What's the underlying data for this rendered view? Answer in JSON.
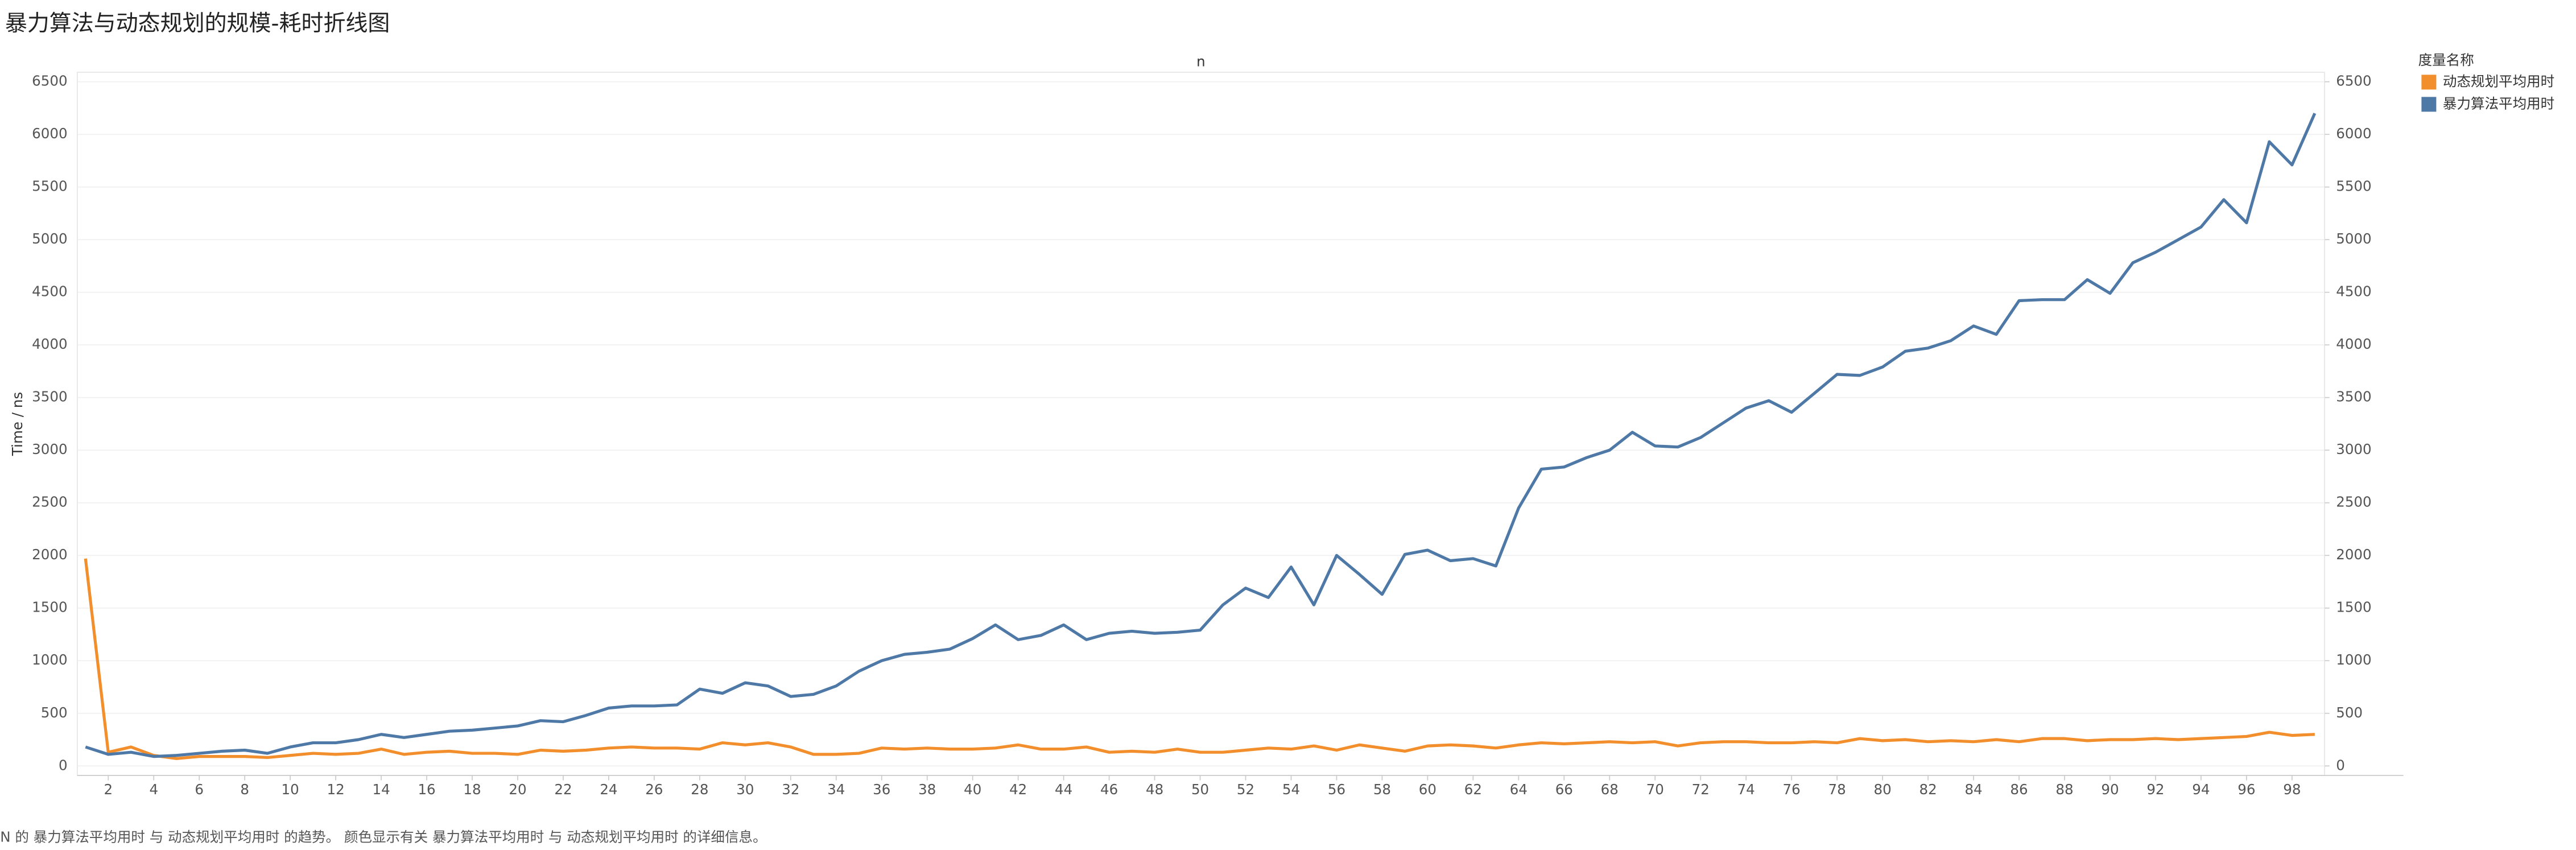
{
  "chart_data": {
    "type": "line",
    "title": "暴力算法与动态规划的规模-耗时折线图",
    "x_label": "n",
    "y_label": "Time / ns",
    "legend_title": "度量名称",
    "caption": "N 的 暴力算法平均用时 与 动态规划平均用时 的趋势。 颜色显示有关 暴力算法平均用时 与 动态规划平均用时 的详细信息。",
    "x": [
      1,
      2,
      3,
      4,
      5,
      6,
      7,
      8,
      9,
      10,
      11,
      12,
      13,
      14,
      15,
      16,
      17,
      18,
      19,
      20,
      21,
      22,
      23,
      24,
      25,
      26,
      27,
      28,
      29,
      30,
      31,
      32,
      33,
      34,
      35,
      36,
      37,
      38,
      39,
      40,
      41,
      42,
      43,
      44,
      45,
      46,
      47,
      48,
      49,
      50,
      51,
      52,
      53,
      54,
      55,
      56,
      57,
      58,
      59,
      60,
      61,
      62,
      63,
      64,
      65,
      66,
      67,
      68,
      69,
      70,
      71,
      72,
      73,
      74,
      75,
      76,
      77,
      78,
      79,
      80,
      81,
      82,
      83,
      84,
      85,
      86,
      87,
      88,
      89,
      90,
      91,
      92,
      93,
      94,
      95,
      96,
      97,
      98,
      99
    ],
    "xlim": [
      0.64,
      99.43
    ],
    "xticks": [
      2,
      4,
      6,
      8,
      10,
      12,
      14,
      16,
      18,
      20,
      22,
      24,
      26,
      28,
      30,
      32,
      34,
      36,
      38,
      40,
      42,
      44,
      46,
      48,
      50,
      52,
      54,
      56,
      58,
      60,
      62,
      64,
      66,
      68,
      70,
      72,
      74,
      76,
      78,
      80,
      82,
      84,
      86,
      88,
      90,
      92,
      94,
      96,
      98
    ],
    "ylim": [
      -90,
      6590
    ],
    "yticks": [
      0,
      500,
      1000,
      1500,
      2000,
      2500,
      3000,
      3500,
      4000,
      4500,
      5000,
      5500,
      6000,
      6500
    ],
    "y2lim": [
      -90,
      6590
    ],
    "y2ticks": [
      0,
      500,
      1000,
      1500,
      2000,
      2500,
      3000,
      3500,
      4000,
      4500,
      5000,
      5500,
      6000,
      6500
    ],
    "grid": true,
    "legend": "right",
    "series": [
      {
        "name": "动态规划平均用时",
        "color": "#f28e2b",
        "values": [
          1970,
          130,
          180,
          100,
          70,
          90,
          90,
          90,
          80,
          100,
          120,
          110,
          120,
          160,
          110,
          130,
          140,
          120,
          120,
          110,
          150,
          140,
          150,
          170,
          180,
          170,
          170,
          160,
          220,
          200,
          220,
          180,
          110,
          110,
          120,
          170,
          160,
          170,
          160,
          160,
          170,
          200,
          160,
          160,
          180,
          130,
          140,
          130,
          160,
          130,
          130,
          150,
          170,
          160,
          190,
          150,
          200,
          170,
          140,
          190,
          200,
          190,
          170,
          200,
          220,
          210,
          220,
          230,
          220,
          230,
          190,
          220,
          230,
          230,
          220,
          220,
          230,
          220,
          260,
          240,
          250,
          230,
          240,
          230,
          250,
          230,
          260,
          260,
          240,
          250,
          250,
          260,
          250,
          260,
          270,
          280,
          320,
          290,
          300
        ]
      },
      {
        "name": "暴力算法平均用时",
        "color": "#4e79a7",
        "values": [
          180,
          110,
          130,
          90,
          100,
          120,
          140,
          150,
          120,
          180,
          220,
          220,
          250,
          300,
          270,
          300,
          330,
          340,
          360,
          380,
          430,
          420,
          480,
          550,
          570,
          570,
          580,
          730,
          690,
          790,
          760,
          660,
          680,
          760,
          900,
          1000,
          1060,
          1080,
          1110,
          1210,
          1340,
          1200,
          1240,
          1340,
          1200,
          1260,
          1280,
          1260,
          1270,
          1290,
          1530,
          1690,
          1600,
          1890,
          1530,
          2000,
          1820,
          1630,
          2010,
          2050,
          1950,
          1970,
          1900,
          2450,
          2820,
          2840,
          2930,
          3000,
          3170,
          3040,
          3030,
          3120,
          3260,
          3400,
          3470,
          3360,
          3540,
          3720,
          3710,
          3790,
          3940,
          3970,
          4040,
          4180,
          4100,
          4420,
          4430,
          4430,
          4620,
          4490,
          4780,
          4880,
          5000,
          5120,
          5380,
          5160,
          5930,
          5710,
          6200
        ]
      }
    ]
  }
}
